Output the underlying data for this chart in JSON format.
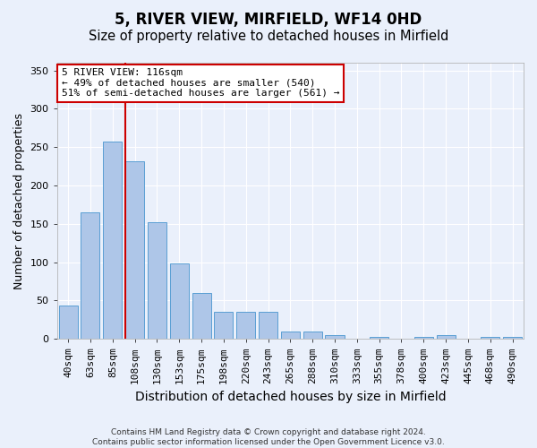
{
  "title": "5, RIVER VIEW, MIRFIELD, WF14 0HD",
  "subtitle": "Size of property relative to detached houses in Mirfield",
  "xlabel": "Distribution of detached houses by size in Mirfield",
  "ylabel": "Number of detached properties",
  "footer_line1": "Contains HM Land Registry data © Crown copyright and database right 2024.",
  "footer_line2": "Contains public sector information licensed under the Open Government Licence v3.0.",
  "categories": [
    "40sqm",
    "63sqm",
    "85sqm",
    "108sqm",
    "130sqm",
    "153sqm",
    "175sqm",
    "198sqm",
    "220sqm",
    "243sqm",
    "265sqm",
    "288sqm",
    "310sqm",
    "333sqm",
    "355sqm",
    "378sqm",
    "400sqm",
    "423sqm",
    "445sqm",
    "468sqm",
    "490sqm"
  ],
  "values": [
    43,
    165,
    257,
    232,
    152,
    98,
    60,
    35,
    35,
    35,
    10,
    10,
    5,
    0,
    3,
    0,
    3,
    5,
    0,
    3,
    2
  ],
  "bar_color": "#aec6e8",
  "bar_edge_color": "#5a9fd4",
  "vline_pos": 2.575,
  "vline_color": "#cc0000",
  "annotation_line1": "5 RIVER VIEW: 116sqm",
  "annotation_line2": "← 49% of detached houses are smaller (540)",
  "annotation_line3": "51% of semi-detached houses are larger (561) →",
  "annotation_box_color": "#ffffff",
  "annotation_box_edge": "#cc0000",
  "ylim": [
    0,
    360
  ],
  "yticks": [
    0,
    50,
    100,
    150,
    200,
    250,
    300,
    350
  ],
  "bg_color": "#eaf0fb",
  "plot_bg_color": "#eaf0fb",
  "title_fontsize": 12,
  "subtitle_fontsize": 10.5,
  "xlabel_fontsize": 10,
  "ylabel_fontsize": 9,
  "tick_fontsize": 8
}
